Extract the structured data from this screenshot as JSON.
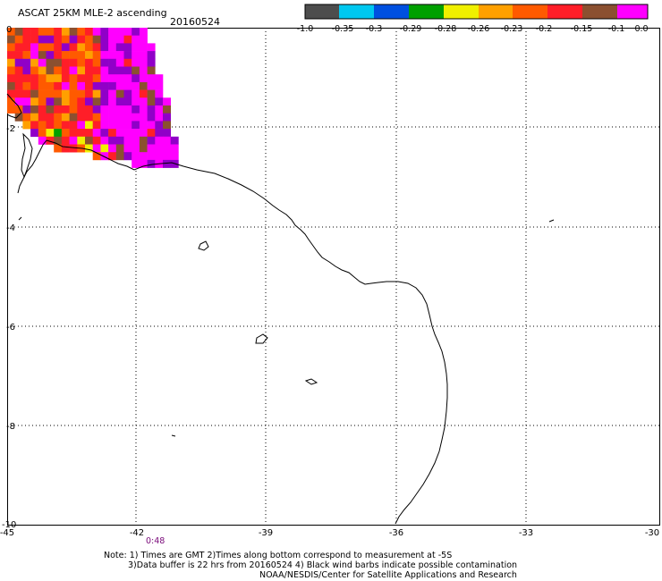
{
  "header": {
    "title": "ASCAT 25KM MLE-2 ascending",
    "date": "20160524"
  },
  "legend": {
    "colors": [
      "#4d4d4d",
      "#00c8f0",
      "#0050e0",
      "#00a000",
      "#f0f000",
      "#ffa000",
      "#ff5a00",
      "#ff1e28",
      "#8b5030",
      "#ff00ff",
      "#9000c8"
    ],
    "labels": [
      "-1.0",
      "-0.35",
      "-0.3",
      "-0.29",
      "-0.28",
      "-0.26",
      "-0.23",
      "-0.2",
      "-0.15",
      "-0.1",
      "0.0"
    ]
  },
  "axes": {
    "lon_ticks": [
      "-45",
      "-42",
      "-39",
      "-36",
      "-33",
      "-30"
    ],
    "lat_ticks": [
      "0",
      "-2",
      "-4",
      "-6",
      "-8",
      "-10"
    ]
  },
  "time_label": "0:48",
  "footer": {
    "line1": "Note: 1) Times are GMT 2)Times along bottom correspond to measurement at -5S",
    "line2": "3)Data buffer is 22 hrs from 20160524 4) Black wind barbs indicate possible contamination",
    "line3": "NOAA/NESDIS/Center for Satellite Applications and Research"
  }
}
